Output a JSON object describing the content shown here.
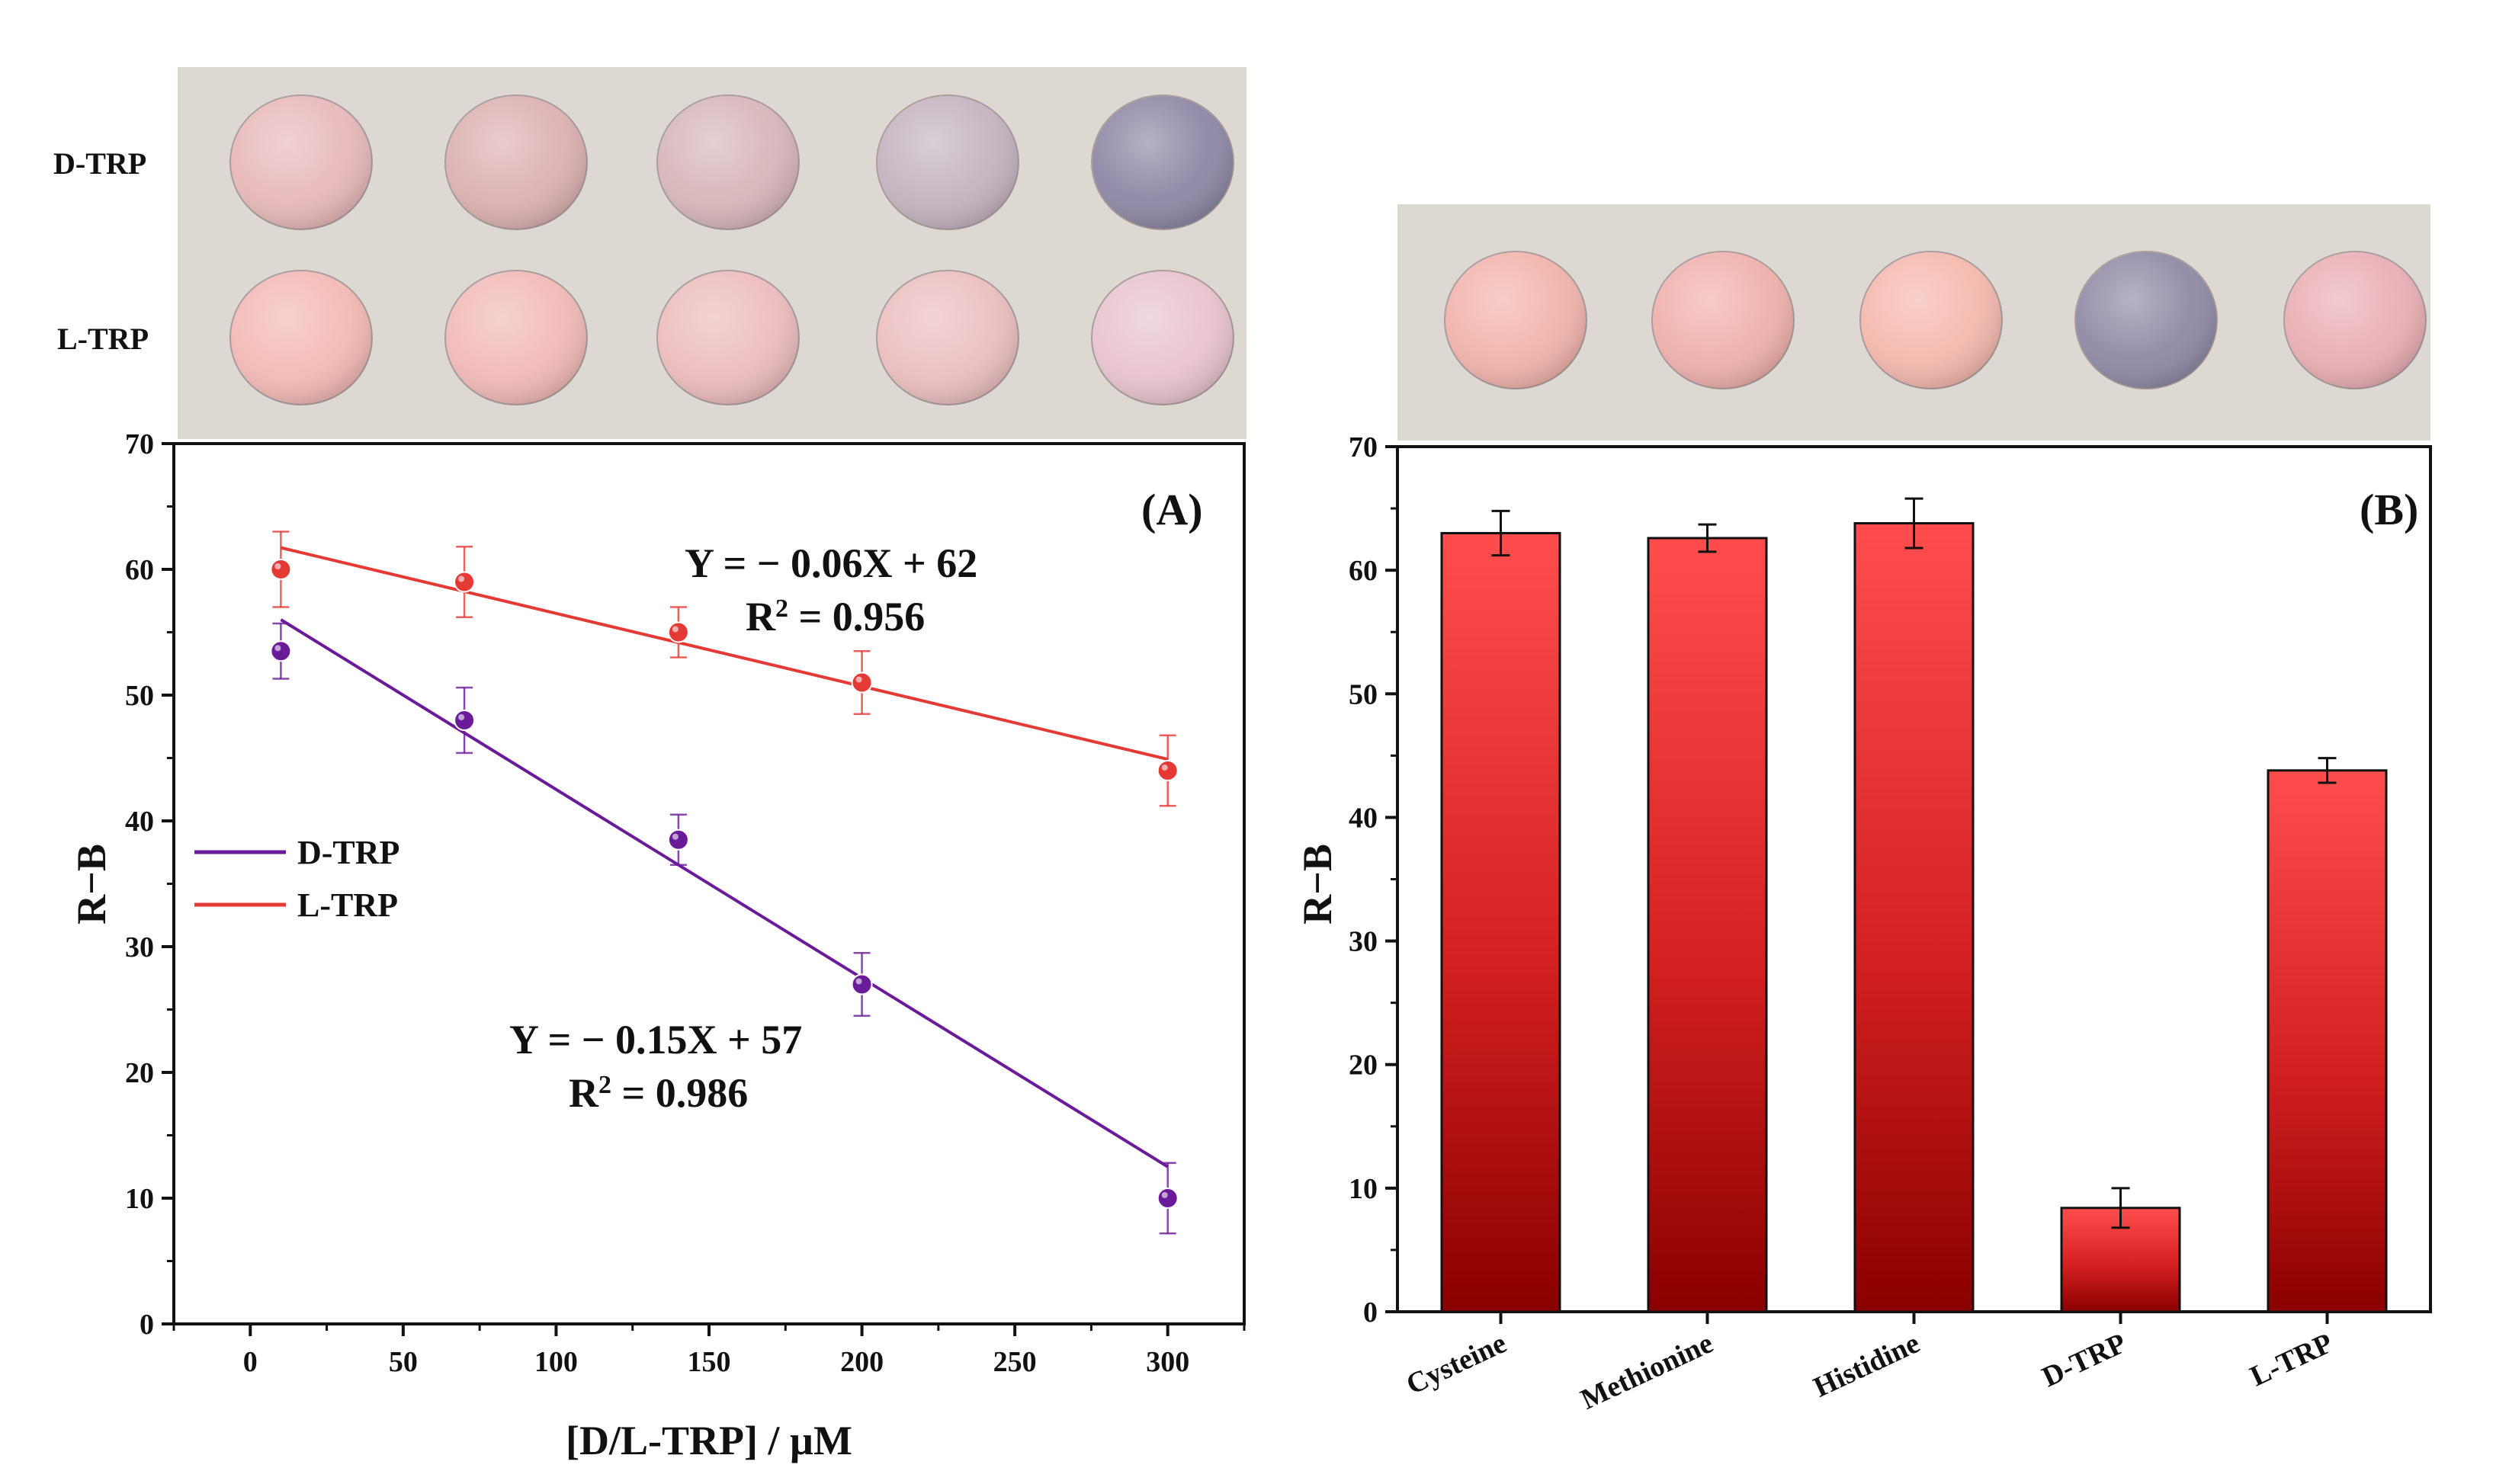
{
  "colors": {
    "d_trp": "#6a1b9a",
    "l_trp": "#e53935",
    "bar_top": "#ff4a4a",
    "bar_bottom": "#8b0000",
    "photo_bg": "#ddd8d2"
  },
  "photo_A": {
    "rows": [
      {
        "label": "D-TRP",
        "wells": [
          "#e8b8bb",
          "#ddb0b2",
          "#d7b6b9",
          "#c3b4c0",
          "#8d87a5"
        ]
      },
      {
        "label": "L-TRP",
        "wells": [
          "#f3b9b4",
          "#f1bab6",
          "#edbcbd",
          "#ecbec1",
          "#e8c3ce"
        ]
      }
    ]
  },
  "photo_B": {
    "wells": [
      "#f2b3ab",
      "#f0b0ac",
      "#f5b8ad",
      "#8e8aa6",
      "#e9aeb5"
    ]
  },
  "chart_data": [
    {
      "type": "scatter",
      "panel_label": "(A)",
      "xlabel": "[D/L-TRP] / µM",
      "ylabel": "R−B",
      "xlim": [
        -25,
        325
      ],
      "ylim": [
        0,
        70
      ],
      "xticks": [
        "0",
        "50",
        "100",
        "150",
        "200",
        "250",
        "300"
      ],
      "yticks": [
        "0",
        "10",
        "20",
        "30",
        "40",
        "50",
        "60",
        "70"
      ],
      "x": [
        10,
        70,
        140,
        200,
        300
      ],
      "series": [
        {
          "name": "D-TRP",
          "values": [
            53.5,
            48,
            38.5,
            27,
            10
          ],
          "errors": [
            2.2,
            2.6,
            2.0,
            2.5,
            2.8
          ],
          "fit": {
            "slope": -0.15,
            "intercept": 57.5
          }
        },
        {
          "name": "L-TRP",
          "values": [
            60,
            59,
            55,
            51,
            44
          ],
          "errors": [
            3.0,
            2.8,
            2.0,
            2.5,
            2.8
          ],
          "fit": {
            "slope": -0.058,
            "intercept": 62.3
          }
        }
      ],
      "legend": [
        "D-TRP",
        "L-TRP"
      ],
      "legend_position": "middle-left",
      "annotations": {
        "l_eq": "Y = − 0.06X + 62",
        "l_r2_prefix": "R",
        "l_r2_sup": "2",
        "l_r2_value": " = 0.956",
        "d_eq": "Y = − 0.15X + 57",
        "d_r2_prefix": "R",
        "d_r2_sup": "2",
        "d_r2_value": " = 0.986"
      }
    },
    {
      "type": "bar",
      "panel_label": "(B)",
      "ylabel": "R−B",
      "xlabel": "",
      "ylim": [
        0,
        70
      ],
      "yticks": [
        "0",
        "10",
        "20",
        "30",
        "40",
        "50",
        "60",
        "70"
      ],
      "categories": [
        "Cysteine",
        "Methionine",
        "Histidine",
        "D-TRP",
        "L-TRP"
      ],
      "values": [
        63,
        62.6,
        63.8,
        8.4,
        43.8
      ],
      "errors": [
        1.8,
        1.1,
        2.0,
        1.6,
        1.0
      ]
    }
  ]
}
